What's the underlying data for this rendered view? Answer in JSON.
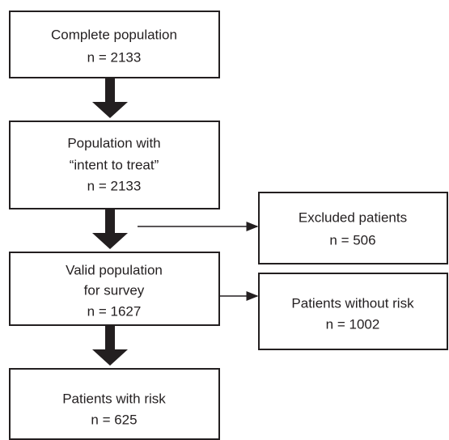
{
  "nodes": [
    {
      "lines": [
        "Complete population",
        "n = 2133"
      ]
    },
    {
      "lines": [
        "Population with",
        "“intent to treat”",
        "n = 2133"
      ]
    },
    {
      "lines": [
        "Excluded patients",
        "n = 506"
      ]
    },
    {
      "lines": [
        "Valid population",
        "for survey",
        "n = 1627"
      ]
    },
    {
      "lines": [
        "Patients without risk",
        "n = 1002"
      ]
    },
    {
      "lines": [
        "Patients with risk",
        "n = 625"
      ]
    }
  ]
}
